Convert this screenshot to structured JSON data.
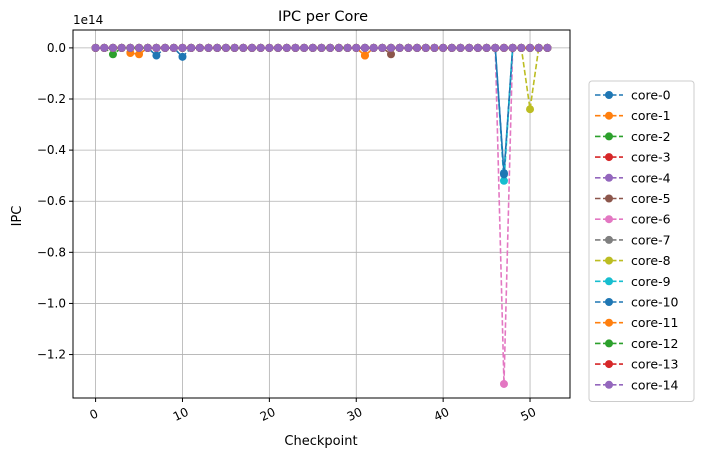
{
  "chart_data": {
    "type": "line",
    "title": "IPC per Core",
    "xlabel": "Checkpoint",
    "ylabel": "IPC",
    "y_offset_label": "1e14",
    "y_scale": 100000000000000.0,
    "xlim": [
      -2.6,
      54.6
    ],
    "ylim": [
      -1.37,
      0.07
    ],
    "x_ticks": [
      0,
      10,
      20,
      30,
      40,
      50
    ],
    "x_tick_labels": [
      "0",
      "10",
      "20",
      "30",
      "40",
      "50"
    ],
    "y_ticks": [
      0.0,
      -0.2,
      -0.4,
      -0.6,
      -0.8,
      -1.0,
      -1.2
    ],
    "y_tick_labels": [
      "0.0",
      "−0.2",
      "−0.4",
      "−0.6",
      "−0.8",
      "−1.0",
      "−1.2"
    ],
    "grid": true,
    "legend_position": "outside-right",
    "x_range": [
      0,
      52
    ],
    "series": [
      {
        "name": "core-0",
        "color": "#1f77b4",
        "outliers": [
          [
            7,
            -0.03
          ],
          [
            10,
            -0.035
          ],
          [
            47,
            -0.49
          ]
        ]
      },
      {
        "name": "core-1",
        "color": "#ff7f0e",
        "outliers": [
          [
            4,
            -0.02
          ],
          [
            5,
            -0.025
          ],
          [
            31,
            -0.03
          ]
        ]
      },
      {
        "name": "core-2",
        "color": "#2ca02c",
        "outliers": [
          [
            2,
            -0.025
          ]
        ]
      },
      {
        "name": "core-3",
        "color": "#d62728",
        "outliers": []
      },
      {
        "name": "core-4",
        "color": "#9467bd",
        "outliers": []
      },
      {
        "name": "core-5",
        "color": "#8c564b",
        "outliers": [
          [
            34,
            -0.025
          ]
        ]
      },
      {
        "name": "core-6",
        "color": "#e377c2",
        "outliers": [
          [
            47,
            -1.315
          ]
        ]
      },
      {
        "name": "core-7",
        "color": "#7f7f7f",
        "outliers": []
      },
      {
        "name": "core-8",
        "color": "#bcbd22",
        "outliers": [
          [
            50,
            -0.24
          ]
        ]
      },
      {
        "name": "core-9",
        "color": "#17becf",
        "outliers": [
          [
            47,
            -0.52
          ]
        ]
      },
      {
        "name": "core-10",
        "color": "#1f77b4",
        "outliers": [
          [
            47,
            -0.495
          ]
        ]
      },
      {
        "name": "core-11",
        "color": "#ff7f0e",
        "outliers": [
          [
            31,
            -0.03
          ]
        ]
      },
      {
        "name": "core-12",
        "color": "#2ca02c",
        "outliers": []
      },
      {
        "name": "core-13",
        "color": "#d62728",
        "outliers": []
      },
      {
        "name": "core-14",
        "color": "#9467bd",
        "outliers": []
      }
    ]
  }
}
